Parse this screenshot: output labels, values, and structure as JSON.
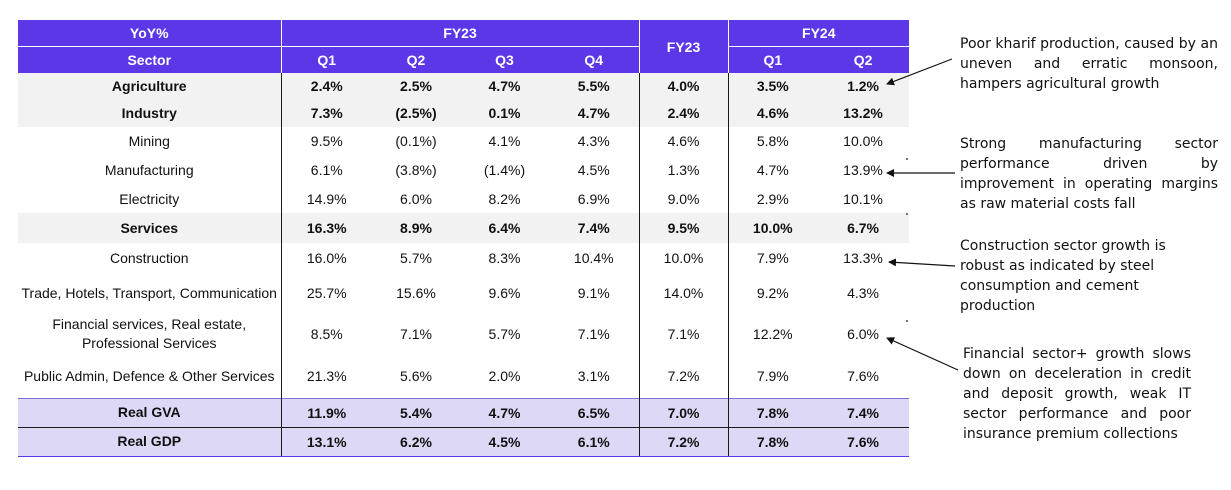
{
  "table": {
    "corner_label": "YoY%",
    "sector_label": "Sector",
    "group_fy23_quarters": "FY23",
    "group_fy23_full": "FY23",
    "group_fy24": "FY24",
    "quarters": [
      "Q1",
      "Q2",
      "Q3",
      "Q4"
    ],
    "fy24_quarters": [
      "Q1",
      "Q2"
    ],
    "rows": [
      {
        "label": "Agriculture",
        "values": [
          "2.4%",
          "2.5%",
          "4.7%",
          "5.5%",
          "4.0%",
          "3.5%",
          "1.2%"
        ]
      },
      {
        "label": "Industry",
        "values": [
          "7.3%",
          "(2.5%)",
          "0.1%",
          "4.7%",
          "2.4%",
          "4.6%",
          "13.2%"
        ]
      },
      {
        "label": "Mining",
        "values": [
          "9.5%",
          "(0.1%)",
          "4.1%",
          "4.3%",
          "4.6%",
          "5.8%",
          "10.0%"
        ]
      },
      {
        "label": "Manufacturing",
        "values": [
          "6.1%",
          "(3.8%)",
          "(1.4%)",
          "4.5%",
          "1.3%",
          "4.7%",
          "13.9%"
        ]
      },
      {
        "label": "Electricity",
        "values": [
          "14.9%",
          "6.0%",
          "8.2%",
          "6.9%",
          "9.0%",
          "2.9%",
          "10.1%"
        ]
      },
      {
        "label": "Services",
        "values": [
          "16.3%",
          "8.9%",
          "6.4%",
          "7.4%",
          "9.5%",
          "10.0%",
          "6.7%"
        ]
      },
      {
        "label": "Construction",
        "values": [
          "16.0%",
          "5.7%",
          "8.3%",
          "10.4%",
          "10.0%",
          "7.9%",
          "13.3%"
        ]
      },
      {
        "label": "Trade, Hotels, Transport, Communication",
        "values": [
          "25.7%",
          "15.6%",
          "9.6%",
          "9.1%",
          "14.0%",
          "9.2%",
          "4.3%"
        ]
      },
      {
        "label": "Financial services, Real estate, Professional Services",
        "values": [
          "8.5%",
          "7.1%",
          "5.7%",
          "7.1%",
          "7.1%",
          "12.2%",
          "6.0%"
        ]
      },
      {
        "label": "Public Admin, Defence & Other Services",
        "values": [
          "21.3%",
          "5.6%",
          "2.0%",
          "3.1%",
          "7.2%",
          "7.9%",
          "7.6%"
        ]
      },
      {
        "label": "Real GVA",
        "values": [
          "11.9%",
          "5.4%",
          "4.7%",
          "6.5%",
          "7.0%",
          "7.8%",
          "7.4%"
        ]
      },
      {
        "label": "Real GDP",
        "values": [
          "13.1%",
          "6.2%",
          "4.5%",
          "6.1%",
          "7.2%",
          "7.8%",
          "7.6%"
        ]
      }
    ]
  },
  "annotations": [
    {
      "text": "Poor kharif production, caused by an uneven and erratic monsoon, hampers agricultural growth"
    },
    {
      "text": "Strong manufacturing sector performance driven by improvement in operating margins as raw material costs fall"
    },
    {
      "text": "Construction sector growth is robust as indicated by steel consumption and cement production"
    },
    {
      "text": "Financial sector+ growth slows down on deceleration in credit and deposit growth, weak IT sector performance and poor insurance premium collections"
    }
  ],
  "colors": {
    "header_bg": "#5b37e8",
    "total_row_bg": "#ddd8f5",
    "shaded_row_bg": "#f2f2f2"
  }
}
